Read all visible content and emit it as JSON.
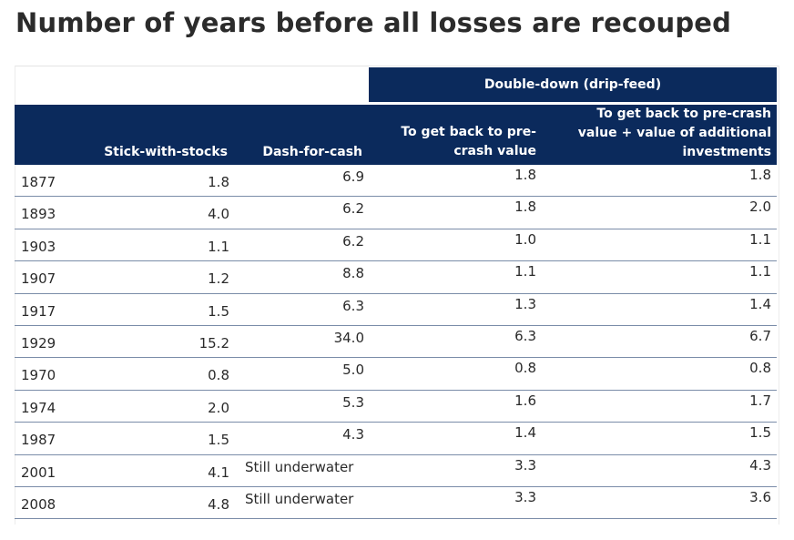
{
  "title": "Number of years before all losses are recouped",
  "table": {
    "group_header": "Double-down (drip-feed)",
    "columns": {
      "stick": "Stick-with-stocks",
      "dash": "Dash-for-cash",
      "pre_crash": "To get back to pre-\ncrash value",
      "pre_crash_plus": "To get back to pre-crash\nvalue + value of additional\ninvestments"
    },
    "rows": [
      {
        "year": "1877",
        "stick": "1.8",
        "dash": "6.9",
        "pre_crash": "1.8",
        "pre_crash_plus": "1.8"
      },
      {
        "year": "1893",
        "stick": "4.0",
        "dash": "6.2",
        "pre_crash": "1.8",
        "pre_crash_plus": "2.0"
      },
      {
        "year": "1903",
        "stick": "1.1",
        "dash": "6.2",
        "pre_crash": "1.0",
        "pre_crash_plus": "1.1"
      },
      {
        "year": "1907",
        "stick": "1.2",
        "dash": "8.8",
        "pre_crash": "1.1",
        "pre_crash_plus": "1.1"
      },
      {
        "year": "1917",
        "stick": "1.5",
        "dash": "6.3",
        "pre_crash": "1.3",
        "pre_crash_plus": "1.4"
      },
      {
        "year": "1929",
        "stick": "15.2",
        "dash": "34.0",
        "pre_crash": "6.3",
        "pre_crash_plus": "6.7"
      },
      {
        "year": "1970",
        "stick": "0.8",
        "dash": "5.0",
        "pre_crash": "0.8",
        "pre_crash_plus": "0.8"
      },
      {
        "year": "1974",
        "stick": "2.0",
        "dash": "5.3",
        "pre_crash": "1.6",
        "pre_crash_plus": "1.7"
      },
      {
        "year": "1987",
        "stick": "1.5",
        "dash": "4.3",
        "pre_crash": "1.4",
        "pre_crash_plus": "1.5"
      },
      {
        "year": "2001",
        "stick": "4.1",
        "dash": "Still underwater",
        "pre_crash": "3.3",
        "pre_crash_plus": "4.3"
      },
      {
        "year": "2008",
        "stick": "4.8",
        "dash": "Still underwater",
        "pre_crash": "3.3",
        "pre_crash_plus": "3.6"
      }
    ]
  },
  "colors": {
    "header_bg": "#0b2a5c",
    "header_text": "#ffffff",
    "row_rule": "#7a8ca8",
    "body_text": "#2a2a2a"
  }
}
